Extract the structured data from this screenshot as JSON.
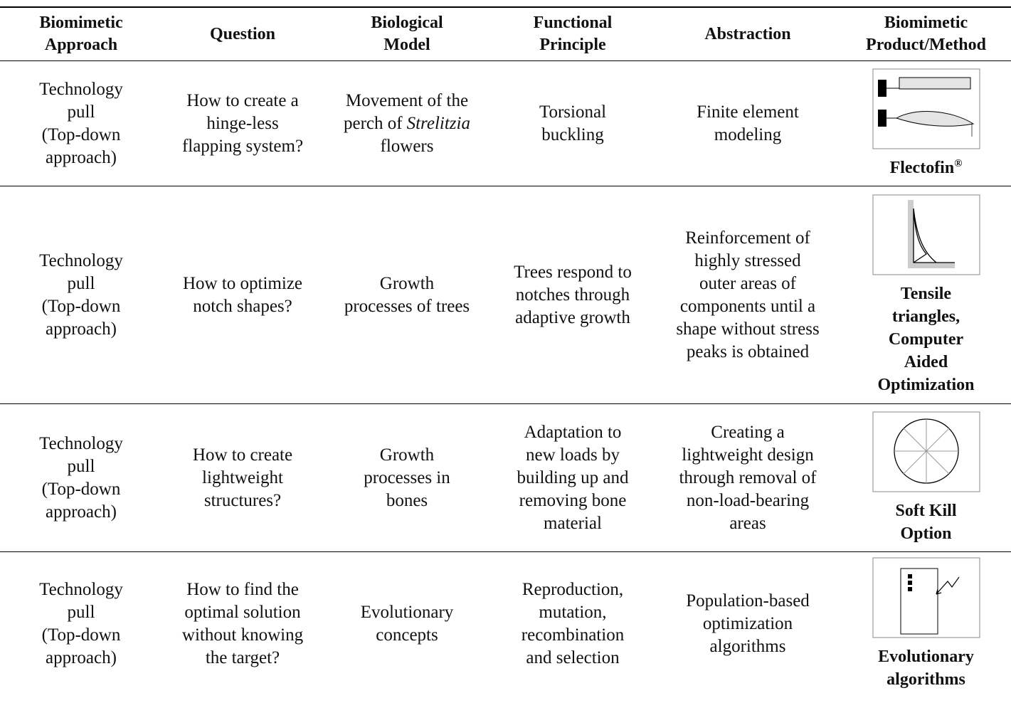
{
  "table": {
    "header": [
      [
        "Biomimetic",
        "Approach"
      ],
      [
        "Question"
      ],
      [
        "Biological",
        "Model"
      ],
      [
        "Functional",
        "Principle"
      ],
      [
        "Abstraction"
      ],
      [
        "Biomimetic",
        "Product/Method"
      ]
    ],
    "rows": [
      {
        "cells": [
          [
            "Technology",
            "pull",
            "(Top-down",
            "approach)"
          ],
          [
            "How to create a",
            "hinge-less",
            "flapping system?"
          ],
          [
            "Movement of the",
            "perch of",
            "Strelitzia",
            "flowers"
          ],
          [
            "Torsional",
            "buckling"
          ],
          [
            "Finite element",
            "modeling"
          ]
        ],
        "product": [
          "Flectofin",
          "®"
        ]
      },
      {
        "cells": [
          [
            "Technology",
            "pull",
            "(Top-down",
            "approach)"
          ],
          [
            "How to optimize",
            "notch shapes?"
          ],
          [
            "Growth",
            "processes of trees"
          ],
          [
            "Trees respond to",
            "notches through",
            "adaptive growth"
          ],
          [
            "Reinforcement of",
            "highly stressed",
            "outer areas of",
            "components until a",
            "shape without stress",
            "peaks is obtained"
          ]
        ],
        "product": [
          "Tensile",
          "triangles,",
          "Computer",
          "Aided",
          "Optimization"
        ]
      },
      {
        "cells": [
          [
            "Technology",
            "pull",
            "(Top-down",
            "approach)"
          ],
          [
            "How to create",
            "lightweight",
            "structures?"
          ],
          [
            "Growth",
            "processes in",
            "bones"
          ],
          [
            "Adaptation to",
            "new loads by",
            "building up and",
            "removing bone",
            "material"
          ],
          [
            "Creating a",
            "lightweight design",
            "through removal of",
            "non-load-bearing",
            "areas"
          ]
        ],
        "product": [
          "Soft Kill",
          "Option"
        ]
      },
      {
        "cells": [
          [
            "Technology",
            "pull",
            "(Top-down",
            "approach)"
          ],
          [
            "How to find the",
            "optimal solution",
            "without knowing",
            "the target?"
          ],
          [
            "Evolutionary",
            "concepts"
          ],
          [
            "Reproduction,",
            "mutation,",
            "recombination",
            "and selection"
          ],
          [
            "Population-based",
            "optimization",
            "algorithms"
          ]
        ],
        "product": [
          "Evolutionary",
          "algorithms"
        ]
      }
    ]
  }
}
